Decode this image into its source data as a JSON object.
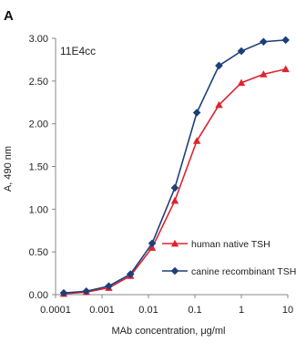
{
  "panel_letter": "A",
  "chart_data": {
    "type": "line",
    "annotation": "11E4cc",
    "xlabel": "MAb concentration, μg/ml",
    "ylabel": "A, 490 nm",
    "xscale": "log",
    "xlim": [
      0.0001,
      10
    ],
    "ylim": [
      0,
      3.0
    ],
    "x_tick_values": [
      0.0001,
      0.001,
      0.01,
      0.1,
      1,
      10
    ],
    "x_tick_labels": [
      "0.0001",
      "0.001",
      "0.01",
      "0.1",
      "1",
      "10"
    ],
    "y_tick_values": [
      0,
      0.5,
      1.0,
      1.5,
      2.0,
      2.5,
      3.0
    ],
    "y_tick_labels": [
      "0.00",
      "0.50",
      "1.00",
      "1.50",
      "2.00",
      "2.50",
      "3.00"
    ],
    "grid": false,
    "legend_position": "bottom-right",
    "x": [
      0.00015,
      0.00046,
      0.0014,
      0.0041,
      0.012,
      0.037,
      0.11,
      0.33,
      1.0,
      3.0,
      9.0
    ],
    "series": [
      {
        "name": "human native TSH",
        "color": "#e0232e",
        "marker": "triangle",
        "values": [
          0.01,
          0.03,
          0.08,
          0.22,
          0.55,
          1.1,
          1.8,
          2.22,
          2.48,
          2.58,
          2.64
        ]
      },
      {
        "name": "canine recombinant TSH",
        "color": "#1c3f7a",
        "marker": "diamond",
        "values": [
          0.02,
          0.04,
          0.1,
          0.24,
          0.6,
          1.25,
          2.13,
          2.68,
          2.85,
          2.96,
          2.98
        ]
      }
    ]
  }
}
